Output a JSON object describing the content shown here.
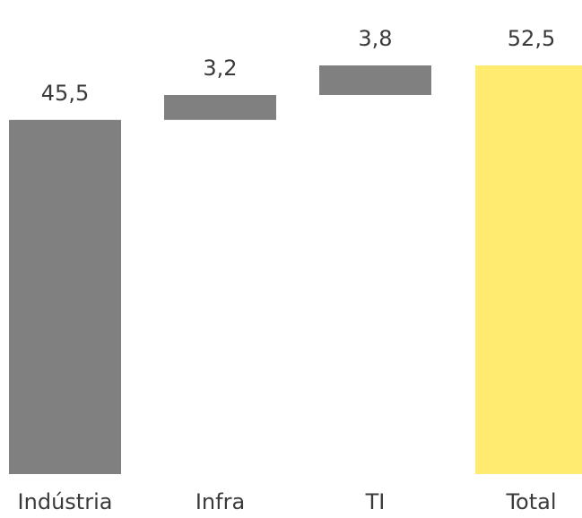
{
  "chart_data": {
    "type": "waterfall",
    "categories": [
      "Indústria",
      "Infra",
      "TI",
      "Total"
    ],
    "values": [
      45.5,
      3.2,
      3.8,
      52.5
    ],
    "value_labels": [
      "45,5",
      "3,2",
      "3,8",
      "52,5"
    ],
    "bar_kinds": [
      "base",
      "increment",
      "increment",
      "total"
    ],
    "title": "",
    "xlabel": "",
    "ylabel": "",
    "ylim": [
      0,
      52.5
    ],
    "grid": false,
    "legend": "none",
    "colors": {
      "base": "#808080",
      "increment": "#808080",
      "total": "#ffeb70",
      "text": "#3a3a3a"
    }
  }
}
